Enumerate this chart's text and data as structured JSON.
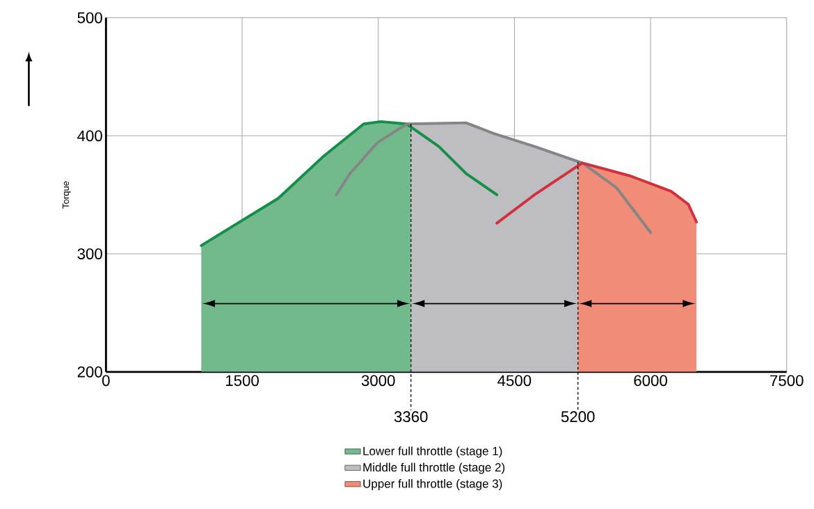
{
  "chart_data": {
    "type": "area",
    "ylabel": "Torque",
    "xlim": [
      0,
      7500
    ],
    "ylim": [
      200,
      500
    ],
    "xticks": [
      0,
      1500,
      3000,
      4500,
      6000,
      7500
    ],
    "yticks": [
      200,
      300,
      400,
      500
    ],
    "grid": true,
    "legend": "bottom",
    "series": [
      {
        "name": "Lower full throttle (stage 1)",
        "color": "#72b98c",
        "x": [
          1050,
          1408,
          1898,
          2387,
          2839,
          3027,
          3313,
          3360
        ],
        "values": [
          307,
          324,
          347,
          382,
          410,
          412,
          410,
          409
        ]
      },
      {
        "name": "Middle full throttle (stage 2)",
        "color": "#bdbdc2",
        "x": [
          3360,
          3968,
          4270,
          4721,
          5200
        ],
        "values": [
          410,
          411,
          402,
          391,
          378
        ]
      },
      {
        "name": "Upper full throttle (stage 3)",
        "color": "#f08c78",
        "x": [
          5200,
          5248,
          5776,
          6227,
          6416,
          6506
        ],
        "values": [
          376,
          377,
          366,
          353,
          342,
          327
        ]
      },
      {
        "type": "line",
        "color": "#148f48",
        "x": [
          1050,
          1408,
          1898,
          2387,
          2839,
          3027,
          3313,
          3667,
          3968,
          4307
        ],
        "values": [
          307,
          324,
          347,
          382,
          410,
          412,
          410,
          391,
          368,
          350
        ]
      },
      {
        "type": "line",
        "color": "#858585",
        "x": [
          2538,
          2688,
          2989,
          3313,
          3968,
          4270,
          4721,
          5248,
          5625,
          6002
        ],
        "values": [
          350,
          368,
          394,
          410,
          411,
          402,
          391,
          377,
          356,
          318
        ]
      },
      {
        "type": "line",
        "color": "#d1303c",
        "x": [
          4307,
          4721,
          5248,
          5776,
          6227,
          6416,
          6506
        ],
        "values": [
          326,
          350,
          377,
          366,
          353,
          342,
          327
        ]
      }
    ],
    "ref_lines": [
      {
        "axis": "x",
        "value": 3360,
        "label": "3360",
        "line_style": "dashed"
      },
      {
        "axis": "x",
        "value": 5200,
        "label": "5200",
        "line_style": "dashed"
      }
    ]
  }
}
